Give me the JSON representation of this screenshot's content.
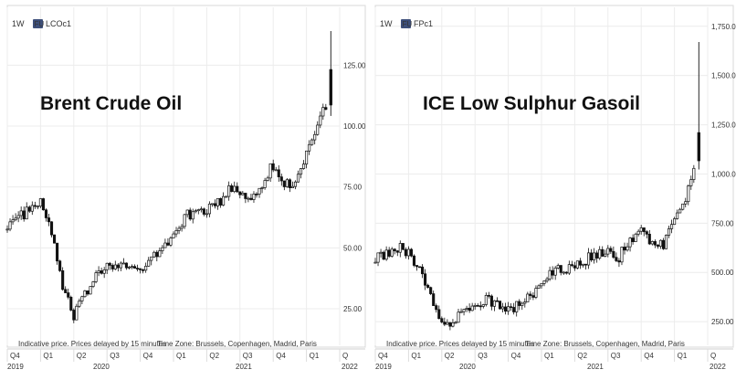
{
  "chart_data": [
    {
      "type": "candlestick",
      "interval": "1W",
      "ric": "LCOc1",
      "badge": "FU",
      "title": "Brent Crude Oil",
      "note": "Indicative price. Prices delayed by 15 minutes",
      "timezone": "Time Zone: Brussels, Copenhagen, Madrid, Paris",
      "y_ticks": [
        "25.00",
        "50.00",
        "75.00",
        "100.00",
        "125.00"
      ],
      "ylim": [
        10,
        145
      ],
      "grid": true,
      "quarter_labels": [
        "Q4",
        "Q1",
        "Q2",
        "Q3",
        "Q4",
        "Q1",
        "Q2",
        "Q3",
        "Q4",
        "Q1",
        "Q"
      ],
      "year_labels": [
        "2019",
        "2020",
        "2021",
        "2022"
      ],
      "x_range": [
        "2019-10",
        "2022-04"
      ],
      "series": [
        {
          "x": "2019-10",
          "y": 60
        },
        {
          "x": "2019-11",
          "y": 62
        },
        {
          "x": "2019-12",
          "y": 66
        },
        {
          "x": "2020-01",
          "y": 68
        },
        {
          "x": "2020-02",
          "y": 57
        },
        {
          "x": "2020-03",
          "y": 33
        },
        {
          "x": "2020-04",
          "y": 22
        },
        {
          "x": "2020-05",
          "y": 30
        },
        {
          "x": "2020-06",
          "y": 40
        },
        {
          "x": "2020-07",
          "y": 43
        },
        {
          "x": "2020-08",
          "y": 44
        },
        {
          "x": "2020-09",
          "y": 42
        },
        {
          "x": "2020-10",
          "y": 40
        },
        {
          "x": "2020-11",
          "y": 45
        },
        {
          "x": "2020-12",
          "y": 50
        },
        {
          "x": "2021-01",
          "y": 55
        },
        {
          "x": "2021-02",
          "y": 63
        },
        {
          "x": "2021-03",
          "y": 64
        },
        {
          "x": "2021-04",
          "y": 66
        },
        {
          "x": "2021-05",
          "y": 68
        },
        {
          "x": "2021-06",
          "y": 74
        },
        {
          "x": "2021-07",
          "y": 73
        },
        {
          "x": "2021-08",
          "y": 70
        },
        {
          "x": "2021-09",
          "y": 77
        },
        {
          "x": "2021-10",
          "y": 84
        },
        {
          "x": "2021-11",
          "y": 76
        },
        {
          "x": "2021-12",
          "y": 76
        },
        {
          "x": "2022-01",
          "y": 90
        },
        {
          "x": "2022-02",
          "y": 100
        },
        {
          "x": "2022-03",
          "y": 112
        }
      ],
      "spike_high": 139
    },
    {
      "type": "candlestick",
      "interval": "1W",
      "ric": "FPc1",
      "badge": "FU",
      "title": "ICE Low Sulphur Gasoil",
      "note": "Indicative price. Prices delayed by 15 minutes",
      "timezone": "Time Zone: Brussels, Copenhagen, Madrid, Paris",
      "y_ticks": [
        "250.00",
        "500.00",
        "750.00",
        "1,000.00",
        "1,250.00",
        "1,500.00",
        "1,750.00"
      ],
      "ylim": [
        130,
        1800
      ],
      "grid": true,
      "quarter_labels": [
        "Q4",
        "Q1",
        "Q2",
        "Q3",
        "Q4",
        "Q1",
        "Q2",
        "Q3",
        "Q4",
        "Q1",
        "Q"
      ],
      "year_labels": [
        "2019",
        "2020",
        "2021",
        "2022"
      ],
      "x_range": [
        "2019-10",
        "2022-04"
      ],
      "series": [
        {
          "x": "2019-10",
          "y": 580
        },
        {
          "x": "2019-11",
          "y": 600
        },
        {
          "x": "2019-12",
          "y": 625
        },
        {
          "x": "2020-01",
          "y": 610
        },
        {
          "x": "2020-02",
          "y": 520
        },
        {
          "x": "2020-03",
          "y": 370
        },
        {
          "x": "2020-04",
          "y": 240
        },
        {
          "x": "2020-05",
          "y": 260
        },
        {
          "x": "2020-06",
          "y": 320
        },
        {
          "x": "2020-07",
          "y": 350
        },
        {
          "x": "2020-08",
          "y": 355
        },
        {
          "x": "2020-09",
          "y": 340
        },
        {
          "x": "2020-10",
          "y": 320
        },
        {
          "x": "2020-11",
          "y": 330
        },
        {
          "x": "2020-12",
          "y": 380
        },
        {
          "x": "2021-01",
          "y": 440
        },
        {
          "x": "2021-02",
          "y": 500
        },
        {
          "x": "2021-03",
          "y": 520
        },
        {
          "x": "2021-04",
          "y": 530
        },
        {
          "x": "2021-05",
          "y": 560
        },
        {
          "x": "2021-06",
          "y": 600
        },
        {
          "x": "2021-07",
          "y": 600
        },
        {
          "x": "2021-08",
          "y": 580
        },
        {
          "x": "2021-09",
          "y": 660
        },
        {
          "x": "2021-10",
          "y": 740
        },
        {
          "x": "2021-11",
          "y": 640
        },
        {
          "x": "2021-12",
          "y": 640
        },
        {
          "x": "2022-01",
          "y": 760
        },
        {
          "x": "2022-02",
          "y": 860
        },
        {
          "x": "2022-03",
          "y": 1100
        }
      ],
      "spike_high": 1670
    }
  ]
}
